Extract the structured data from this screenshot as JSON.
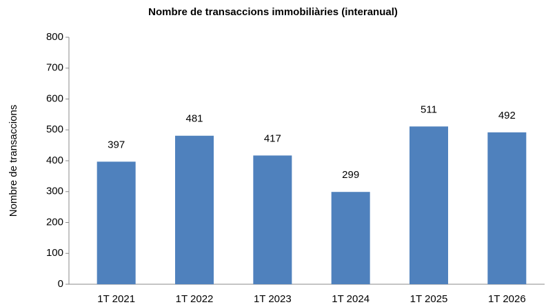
{
  "chart_data": {
    "type": "bar",
    "title": "Nombre de transaccions immobiliàries (interanual)",
    "y_label": "Nombre de transaccions",
    "categories": [
      "1T 2021",
      "1T 2022",
      "1T 2023",
      "1T 2024",
      "1T 2025",
      "1T 2026"
    ],
    "values": [
      397,
      481,
      417,
      299,
      511,
      492
    ],
    "color": "#4f81bd",
    "ylim": [
      0,
      800
    ],
    "yticks": [
      0,
      100,
      200,
      300,
      400,
      500,
      600,
      700,
      800
    ],
    "grid": false
  }
}
